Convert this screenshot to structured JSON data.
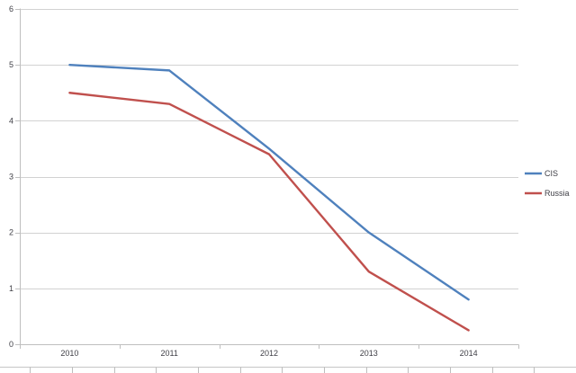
{
  "chart_data": {
    "type": "line",
    "title": "",
    "xlabel": "",
    "ylabel": "",
    "categories": [
      "2010",
      "2011",
      "2012",
      "2013",
      "2014"
    ],
    "series": [
      {
        "name": "CIS",
        "color": "#4f81bd",
        "values": [
          5.0,
          4.9,
          3.5,
          2.0,
          0.8
        ]
      },
      {
        "name": "Russia",
        "color": "#c0504d",
        "values": [
          4.5,
          4.3,
          3.4,
          1.3,
          0.25
        ]
      }
    ],
    "ylim": [
      0,
      6
    ],
    "yticks": [
      0,
      1,
      2,
      3,
      4,
      5,
      6
    ],
    "grid": "horizontal",
    "legend_position": "right-middle",
    "legend_labels": [
      "CIS",
      "Russia"
    ]
  },
  "colors": {
    "background": "#ffffff",
    "gridline": "#d2d2d2",
    "axis_line": "#bfbfbf",
    "tick": "#bfbfbf",
    "label_text": "#3f3f46",
    "worksheet_line": "#c6c6c6",
    "worksheet_tick": "#bdbdbd"
  }
}
